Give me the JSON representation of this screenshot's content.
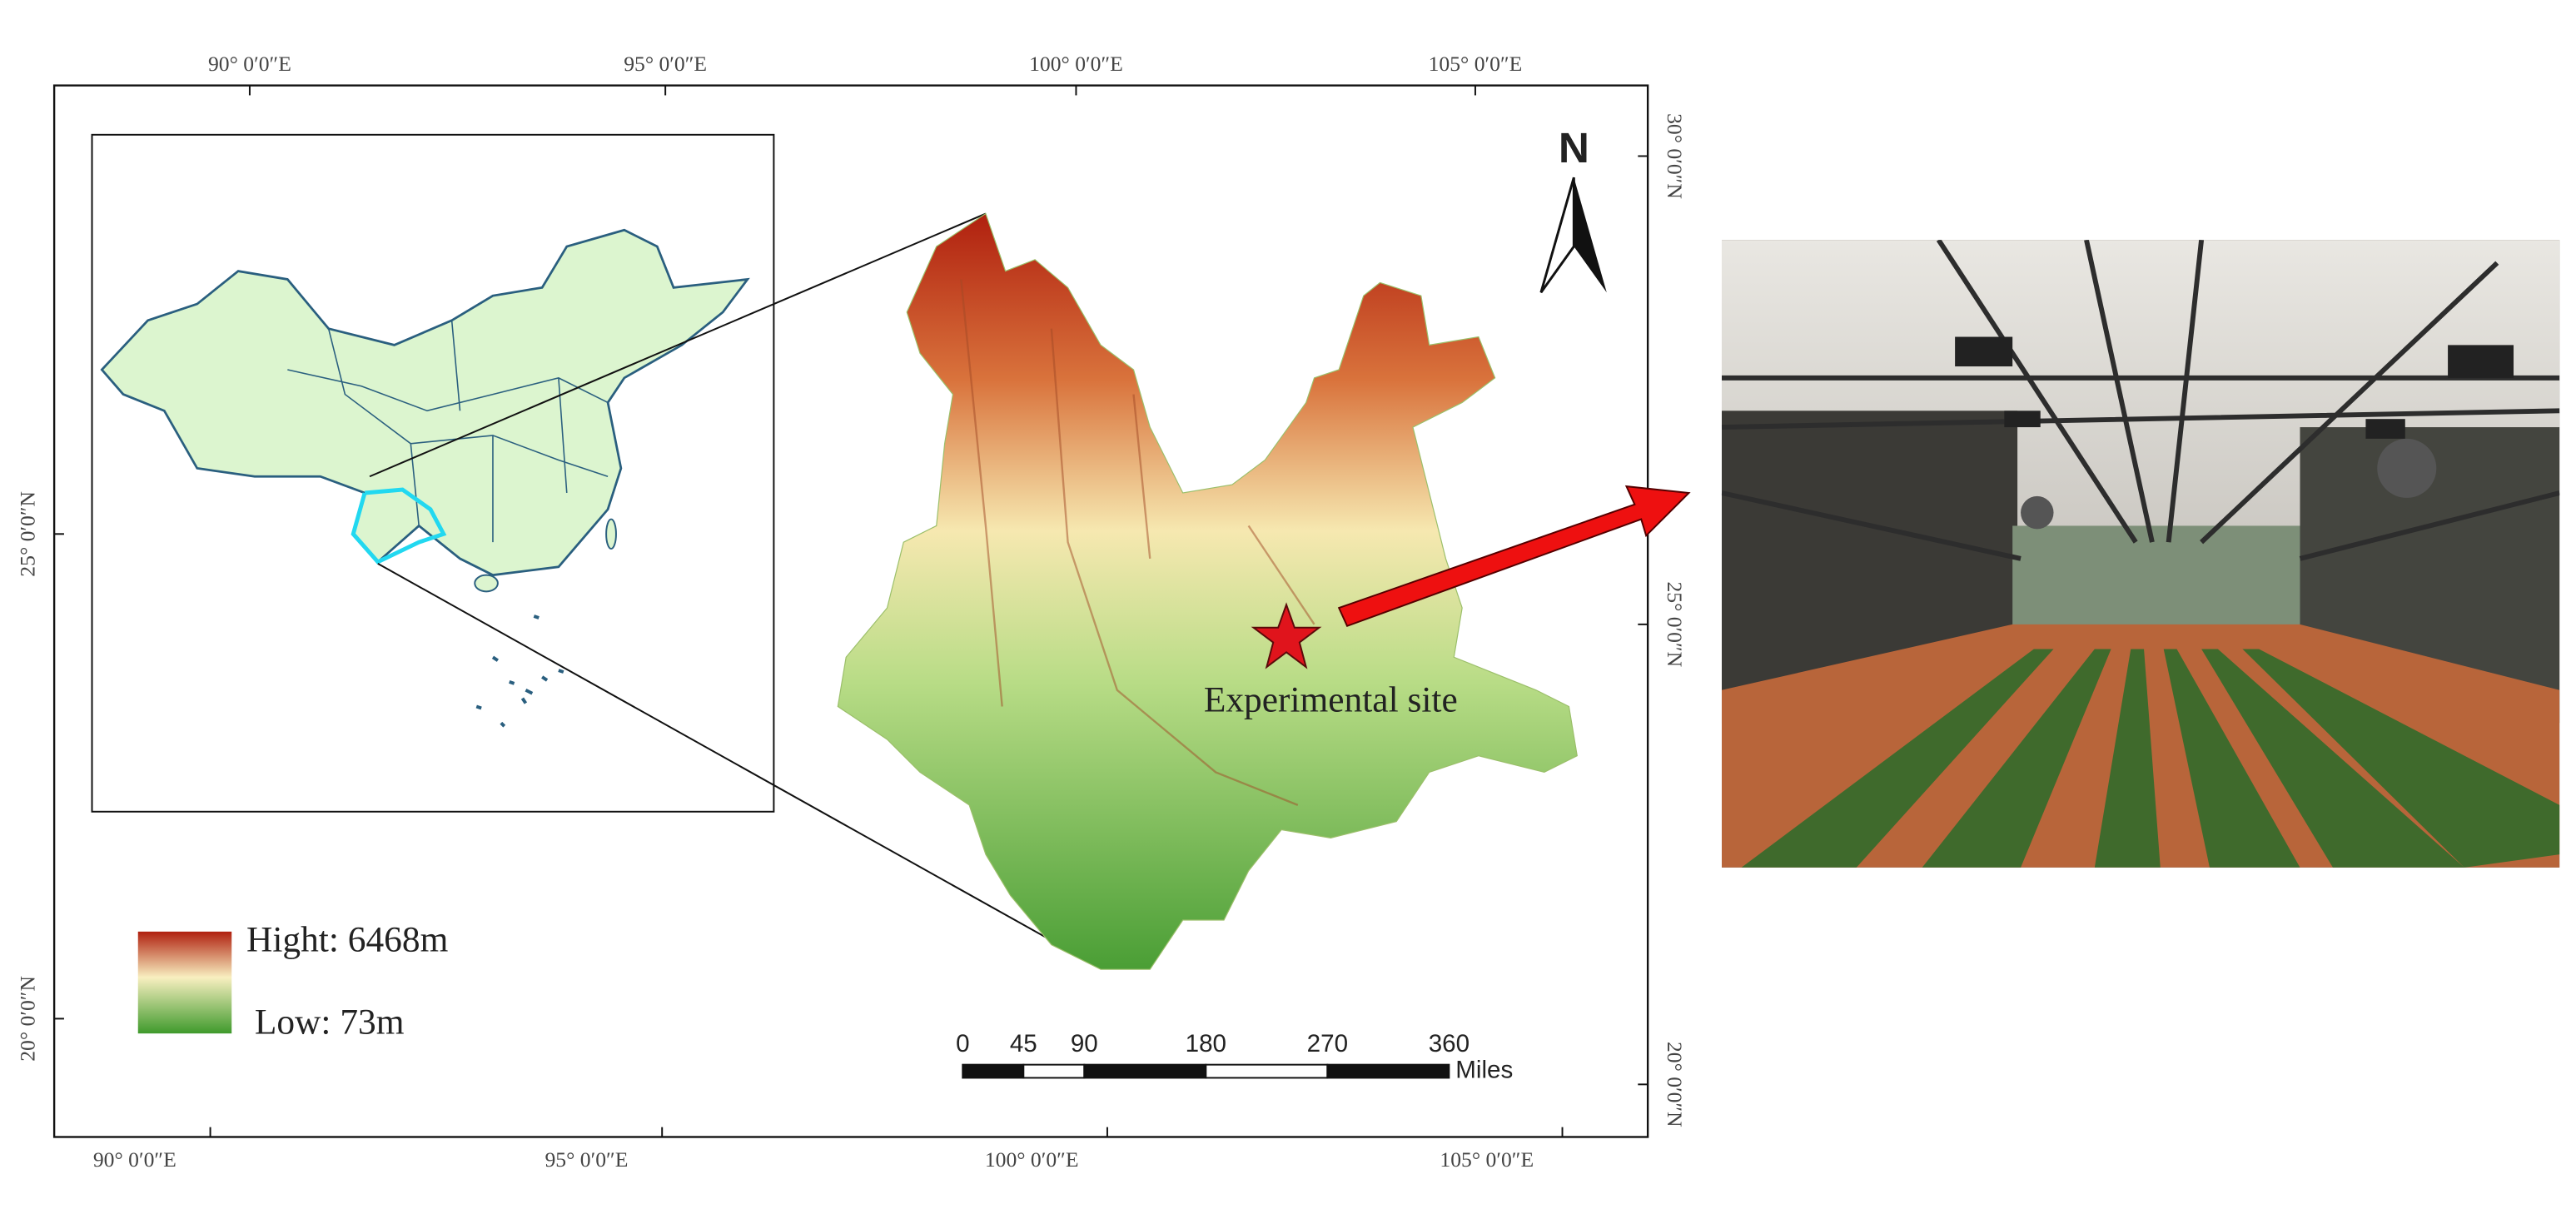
{
  "map": {
    "top_labels": [
      "90° 0′0″E",
      "95° 0′0″E",
      "100° 0′0″E",
      "105° 0′0″E"
    ],
    "bottom_labels": [
      "90° 0′0″E",
      "95° 0′0″E",
      "100° 0′0″E",
      "105° 0′0″E"
    ],
    "left_labels": [
      "25° 0′0″N",
      "20° 0′0″N"
    ],
    "right_labels": [
      "30° 0′0″N",
      "25° 0′0″N",
      "20° 0′0″N"
    ],
    "north": "N",
    "site_label": "Experimental site",
    "legend": {
      "high": "Hight: 6468m",
      "low": "Low: 73m"
    },
    "scale_bar": {
      "ticks": [
        0,
        45,
        90,
        180,
        270,
        360
      ],
      "unit": "Miles"
    }
  }
}
